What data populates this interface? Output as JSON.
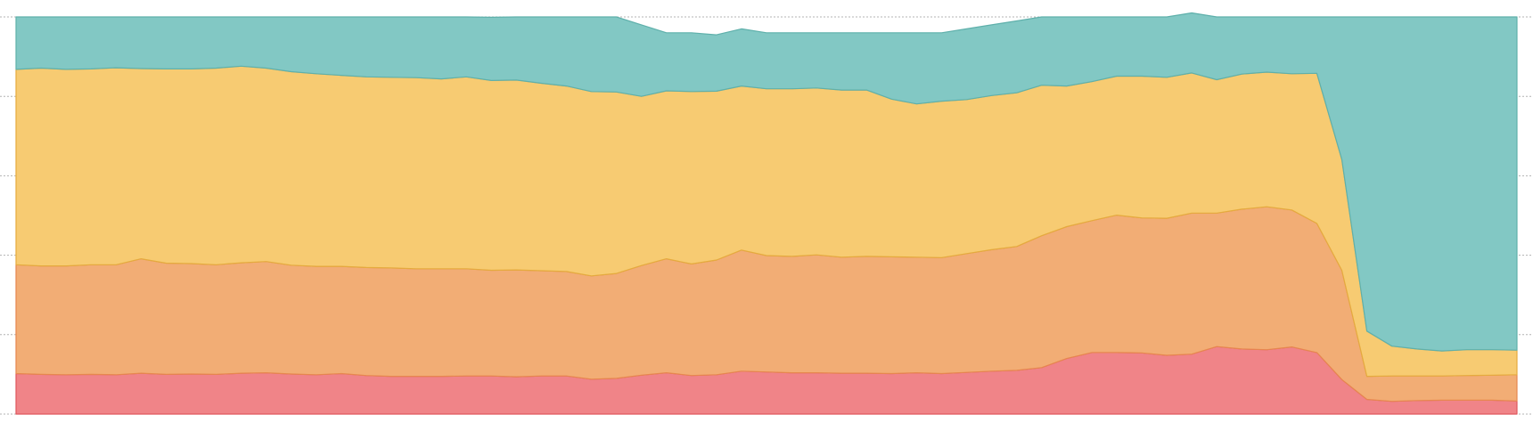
{
  "chart_data": {
    "type": "area",
    "stacked": "percent",
    "grid": true,
    "ylim": [
      0,
      100
    ],
    "x": [
      1,
      2,
      3,
      4,
      5,
      6,
      7,
      8,
      9,
      10,
      11,
      12,
      13,
      14,
      15,
      16,
      17,
      18,
      19,
      20,
      21,
      22,
      23,
      24,
      25,
      26,
      27,
      28,
      29,
      30,
      31,
      32,
      33,
      34,
      35,
      36,
      37,
      38,
      39,
      40,
      41,
      42,
      43,
      44,
      45,
      46,
      47,
      48,
      49,
      50,
      51,
      52,
      53,
      54,
      55,
      56,
      57,
      58,
      59,
      60,
      61
    ],
    "series": [
      {
        "color": "#f08488",
        "stroke": "#e0585e",
        "values": [
          10.2,
          10.0,
          9.9,
          10.0,
          9.9,
          10.3,
          10.0,
          10.1,
          10.0,
          10.3,
          10.4,
          10.1,
          9.9,
          10.2,
          9.7,
          9.5,
          9.5,
          9.5,
          9.6,
          9.6,
          9.4,
          9.6,
          9.6,
          8.8,
          9.0,
          9.8,
          10.4,
          9.7,
          9.9,
          10.8,
          10.6,
          10.4,
          10.4,
          10.3,
          10.3,
          10.2,
          10.4,
          10.2,
          10.5,
          10.8,
          11.0,
          11.7,
          14.0,
          15.5,
          15.5,
          15.4,
          14.8,
          15.1,
          17.0,
          16.4,
          16.2,
          16.9,
          15.5,
          8.7,
          3.7,
          3.2,
          3.4,
          3.5,
          3.5,
          3.5,
          3.3
        ]
      },
      {
        "color": "#f2ad75",
        "stroke": "#e7874f",
        "values": [
          27.4,
          27.3,
          27.4,
          27.6,
          27.7,
          28.8,
          28.0,
          27.8,
          27.6,
          27.8,
          28.0,
          27.4,
          27.3,
          27.0,
          27.2,
          27.3,
          27.1,
          27.1,
          27.0,
          26.6,
          26.9,
          26.5,
          26.3,
          26.0,
          26.4,
          27.6,
          28.7,
          28.1,
          28.9,
          30.5,
          29.3,
          29.3,
          29.7,
          29.2,
          29.4,
          29.4,
          29.1,
          29.2,
          29.9,
          30.6,
          31.2,
          33.2,
          33.2,
          33.2,
          34.6,
          34.0,
          34.5,
          35.5,
          33.6,
          35.2,
          36.0,
          34.5,
          32.5,
          27.5,
          5.8,
          6.4,
          6.2,
          6.1,
          6.2,
          6.3,
          6.6
        ]
      },
      {
        "color": "#f7cb72",
        "stroke": "#e5ab3e",
        "values": [
          49.2,
          49.8,
          49.5,
          49.3,
          49.6,
          47.9,
          48.9,
          49.0,
          49.5,
          49.5,
          48.7,
          48.7,
          48.5,
          48.1,
          48.0,
          48.0,
          48.1,
          47.8,
          48.3,
          47.8,
          47.8,
          47.2,
          46.7,
          46.4,
          45.7,
          42.6,
          42.3,
          43.4,
          42.5,
          41.3,
          42.0,
          42.2,
          42.0,
          42.1,
          41.9,
          39.7,
          38.6,
          39.4,
          38.8,
          38.8,
          38.7,
          37.9,
          35.4,
          35.0,
          35.0,
          35.7,
          35.5,
          35.3,
          33.6,
          34.0,
          33.9,
          34.3,
          37.8,
          27.9,
          11.4,
          7.5,
          6.8,
          6.3,
          6.5,
          6.4,
          6.2
        ]
      },
      {
        "color": "#82c8c4",
        "stroke": "#5fb0ab",
        "values": [
          13.2,
          12.9,
          13.2,
          13.1,
          12.8,
          13.0,
          13.1,
          13.1,
          12.9,
          12.4,
          12.9,
          13.8,
          14.3,
          14.7,
          15.1,
          15.2,
          15.3,
          15.6,
          15.1,
          15.9,
          15.9,
          16.7,
          17.4,
          18.8,
          18.9,
          18.0,
          14.6,
          14.8,
          14.2,
          14.4,
          14.1,
          14.1,
          13.9,
          14.4,
          14.4,
          16.7,
          17.9,
          17.2,
          17.8,
          17.8,
          18.1,
          17.2,
          17.4,
          16.3,
          14.9,
          14.9,
          15.2,
          15.1,
          15.8,
          14.4,
          13.9,
          14.3,
          14.2,
          35.9,
          79.1,
          82.9,
          83.6,
          84.1,
          83.8,
          83.8,
          83.9
        ]
      }
    ]
  }
}
